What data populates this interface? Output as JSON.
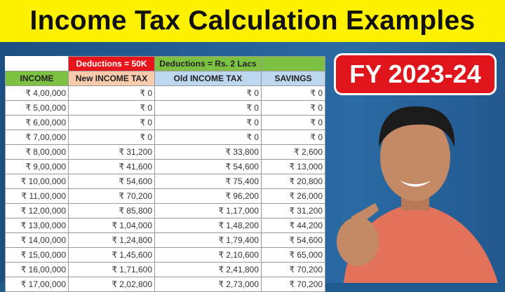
{
  "title": "Income Tax Calculation Examples",
  "badge": "FY 2023-24",
  "colors": {
    "banner": "#fff200",
    "background": "#1f5a8f",
    "badge": "#e0141b",
    "deduction_new": "#e8141b",
    "deduction_old": "#7dc142",
    "income_header": "#7dc142",
    "new_header": "#f8cbad",
    "old_header": "#bdd7ee",
    "savings_header": "#bdd7ee"
  },
  "table": {
    "deductions_new": "Deductions = 50K",
    "deductions_old": "Deductions = Rs. 2 Lacs",
    "headers": [
      "INCOME",
      "New INCOME TAX",
      "Old INCOME TAX",
      "SAVINGS"
    ],
    "rows": [
      [
        "₹ 4,00,000",
        "₹ 0",
        "₹ 0",
        "₹ 0"
      ],
      [
        "₹ 5,00,000",
        "₹ 0",
        "₹ 0",
        "₹ 0"
      ],
      [
        "₹ 6,00,000",
        "₹ 0",
        "₹ 0",
        "₹ 0"
      ],
      [
        "₹ 7,00,000",
        "₹ 0",
        "₹ 0",
        "₹ 0"
      ],
      [
        "₹ 8,00,000",
        "₹ 31,200",
        "₹ 33,800",
        "₹ 2,600"
      ],
      [
        "₹ 9,00,000",
        "₹ 41,600",
        "₹ 54,600",
        "₹ 13,000"
      ],
      [
        "₹ 10,00,000",
        "₹ 54,600",
        "₹ 75,400",
        "₹ 20,800"
      ],
      [
        "₹ 11,00,000",
        "₹ 70,200",
        "₹ 96,200",
        "₹ 26,000"
      ],
      [
        "₹ 12,00,000",
        "₹ 85,800",
        "₹ 1,17,000",
        "₹ 31,200"
      ],
      [
        "₹ 13,00,000",
        "₹ 1,04,000",
        "₹ 1,48,200",
        "₹ 44,200"
      ],
      [
        "₹ 14,00,000",
        "₹ 1,24,800",
        "₹ 1,79,400",
        "₹ 54,600"
      ],
      [
        "₹ 15,00,000",
        "₹ 1,45,600",
        "₹ 2,10,600",
        "₹ 65,000"
      ],
      [
        "₹ 16,00,000",
        "₹ 1,71,600",
        "₹ 2,41,800",
        "₹ 70,200"
      ],
      [
        "₹ 17,00,000",
        "₹ 2,02,800",
        "₹ 2,73,000",
        "₹ 70,200"
      ]
    ]
  }
}
